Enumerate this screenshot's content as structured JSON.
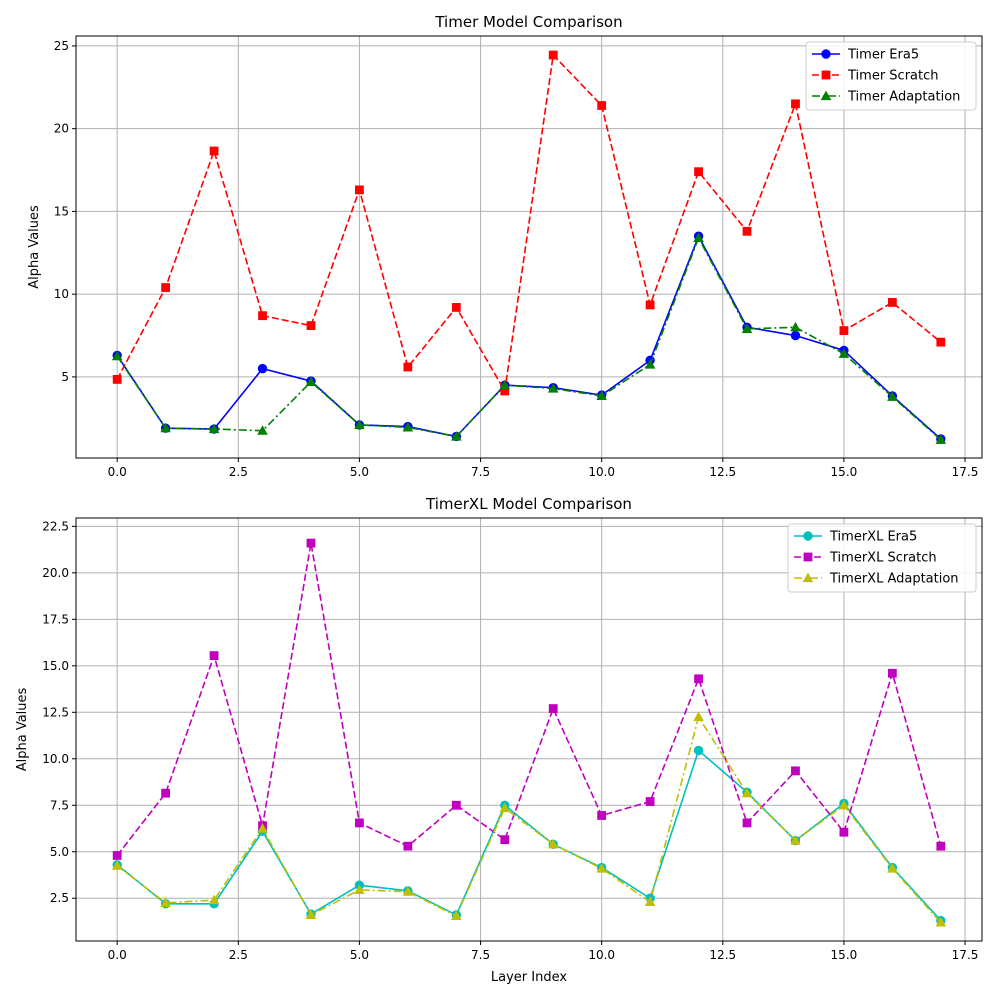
{
  "chart_data": [
    {
      "type": "line",
      "title": "Timer Model Comparison",
      "xlabel": "",
      "ylabel": "Alpha Values",
      "xlim": [
        -0.85,
        17.85
      ],
      "ylim": [
        0.1,
        25.6
      ],
      "xticks": [
        0.0,
        2.5,
        5.0,
        7.5,
        10.0,
        12.5,
        15.0,
        17.5
      ],
      "xtick_labels": [
        "0.0",
        "2.5",
        "5.0",
        "7.5",
        "10.0",
        "12.5",
        "15.0",
        "17.5"
      ],
      "yticks": [
        5,
        10,
        15,
        20,
        25
      ],
      "ytick_labels": [
        "5",
        "10",
        "15",
        "20",
        "25"
      ],
      "grid": true,
      "legend_position": "top-right",
      "x": [
        0,
        1,
        2,
        3,
        4,
        5,
        6,
        7,
        8,
        9,
        10,
        11,
        12,
        13,
        14,
        15,
        16,
        17
      ],
      "series": [
        {
          "name": "Timer Era5",
          "color": "#0000ff",
          "dash": "solid",
          "marker": "circle",
          "values": [
            6.3,
            1.9,
            1.85,
            5.5,
            4.75,
            2.1,
            2.0,
            1.4,
            4.5,
            4.35,
            3.9,
            6.0,
            13.5,
            8.0,
            7.5,
            6.6,
            3.85,
            1.25
          ]
        },
        {
          "name": "Timer Scratch",
          "color": "#ff0000",
          "dash": "dashed",
          "marker": "square",
          "values": [
            4.85,
            10.4,
            18.65,
            8.7,
            8.1,
            16.3,
            5.6,
            9.2,
            4.15,
            24.45,
            21.4,
            9.35,
            17.4,
            13.8,
            21.5,
            7.8,
            9.5,
            7.1
          ]
        },
        {
          "name": "Timer Adaptation",
          "color": "#008000",
          "dash": "dashdot",
          "marker": "triangle",
          "values": [
            6.25,
            1.9,
            1.85,
            1.75,
            4.7,
            2.1,
            1.95,
            1.4,
            4.5,
            4.3,
            3.85,
            5.75,
            13.4,
            7.9,
            8.0,
            6.4,
            3.8,
            1.2
          ]
        }
      ]
    },
    {
      "type": "line",
      "title": "TimerXL Model Comparison",
      "xlabel": "Layer Index",
      "ylabel": "Alpha Values",
      "xlim": [
        -0.85,
        17.85
      ],
      "ylim": [
        0.2,
        22.95
      ],
      "xticks": [
        0.0,
        2.5,
        5.0,
        7.5,
        10.0,
        12.5,
        15.0,
        17.5
      ],
      "xtick_labels": [
        "0.0",
        "2.5",
        "5.0",
        "7.5",
        "10.0",
        "12.5",
        "15.0",
        "17.5"
      ],
      "yticks": [
        2.5,
        5.0,
        7.5,
        10.0,
        12.5,
        15.0,
        17.5,
        20.0,
        22.5
      ],
      "ytick_labels": [
        "2.5",
        "5.0",
        "7.5",
        "10.0",
        "12.5",
        "15.0",
        "17.5",
        "20.0",
        "22.5"
      ],
      "grid": true,
      "legend_position": "top-right",
      "x": [
        0,
        1,
        2,
        3,
        4,
        5,
        6,
        7,
        8,
        9,
        10,
        11,
        12,
        13,
        14,
        15,
        16,
        17
      ],
      "series": [
        {
          "name": "TimerXL Era5",
          "color": "#00bfbf",
          "dash": "solid",
          "marker": "circle",
          "values": [
            4.3,
            2.2,
            2.2,
            6.1,
            1.65,
            3.2,
            2.9,
            1.6,
            7.5,
            5.4,
            4.15,
            2.5,
            10.45,
            8.2,
            5.6,
            7.6,
            4.15,
            1.3
          ]
        },
        {
          "name": "TimerXL Scratch",
          "color": "#bf00bf",
          "dash": "dashed",
          "marker": "square",
          "values": [
            4.8,
            8.15,
            15.55,
            6.4,
            21.6,
            6.55,
            5.3,
            7.5,
            5.65,
            12.7,
            6.95,
            7.7,
            14.3,
            6.55,
            9.35,
            6.05,
            14.6,
            5.3
          ]
        },
        {
          "name": "TimerXL Adaptation",
          "color": "#bfbf00",
          "dash": "dashdot",
          "marker": "triangle",
          "values": [
            4.25,
            2.25,
            2.4,
            6.25,
            1.6,
            2.95,
            2.85,
            1.55,
            7.35,
            5.4,
            4.1,
            2.3,
            12.25,
            8.15,
            5.6,
            7.5,
            4.1,
            1.2
          ]
        }
      ]
    }
  ]
}
